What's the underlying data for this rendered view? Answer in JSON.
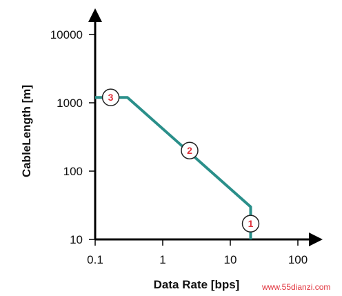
{
  "chart_data": {
    "type": "line",
    "title": "",
    "xlabel": "Data Rate [bps]",
    "ylabel": "CableLength [m]",
    "x_scale": "log",
    "y_scale": "log",
    "xlim": [
      0.1,
      100
    ],
    "ylim": [
      10,
      10000
    ],
    "x_ticks": [
      0.1,
      1,
      10,
      100
    ],
    "x_tick_labels": [
      "0.1",
      "1",
      "10",
      "100"
    ],
    "y_ticks": [
      10,
      100,
      1000,
      10000
    ],
    "y_tick_labels": [
      "10",
      "100",
      "1000",
      "10000"
    ],
    "grid": false,
    "legend": "none",
    "series": [
      {
        "color": "#2a8f8a",
        "points": [
          [
            0.1,
            1200
          ],
          [
            0.3,
            1200
          ],
          [
            20,
            30
          ],
          [
            20,
            10
          ]
        ]
      }
    ],
    "markers": [
      {
        "label": "1",
        "x": 20,
        "y": 17
      },
      {
        "label": "2",
        "x": 2.5,
        "y": 200
      },
      {
        "label": "3",
        "x": 0.17,
        "y": 1200
      }
    ],
    "colors": {
      "axis": "#000000",
      "line": "#2a8f8a",
      "marker_text": "#e0323c",
      "watermark": "#e0323c"
    }
  },
  "watermark": "www.55dianzi.com"
}
